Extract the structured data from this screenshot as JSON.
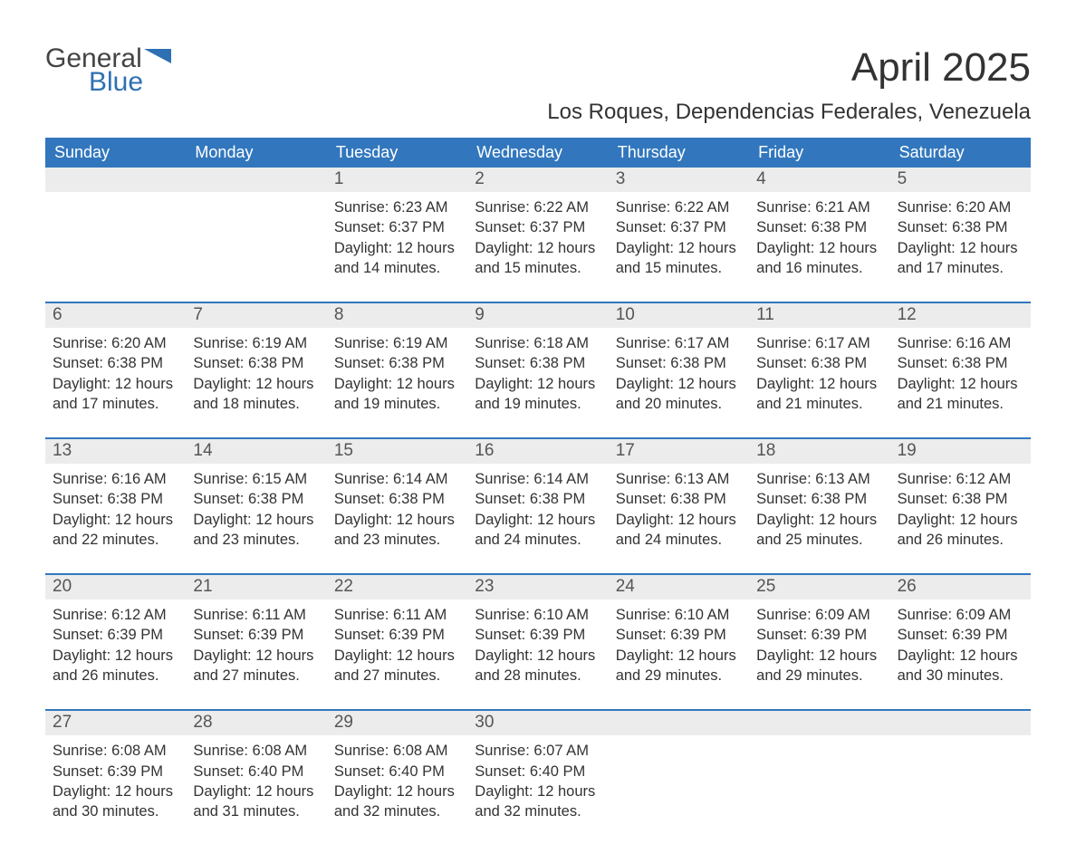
{
  "logo": {
    "general": "General",
    "blue": "Blue",
    "flag_color": "#2f6fb3"
  },
  "title": "April 2025",
  "location": "Los Roques, Dependencias Federales, Venezuela",
  "header_bg": "#3277bd",
  "daynum_bg": "#ececec",
  "rule_color": "#3277bd",
  "text_color": "#333333",
  "dow": [
    "Sunday",
    "Monday",
    "Tuesday",
    "Wednesday",
    "Thursday",
    "Friday",
    "Saturday"
  ],
  "weeks": [
    [
      null,
      null,
      {
        "n": "1",
        "sr": "Sunrise: 6:23 AM",
        "ss": "Sunset: 6:37 PM",
        "d1": "Daylight: 12 hours",
        "d2": "and 14 minutes."
      },
      {
        "n": "2",
        "sr": "Sunrise: 6:22 AM",
        "ss": "Sunset: 6:37 PM",
        "d1": "Daylight: 12 hours",
        "d2": "and 15 minutes."
      },
      {
        "n": "3",
        "sr": "Sunrise: 6:22 AM",
        "ss": "Sunset: 6:37 PM",
        "d1": "Daylight: 12 hours",
        "d2": "and 15 minutes."
      },
      {
        "n": "4",
        "sr": "Sunrise: 6:21 AM",
        "ss": "Sunset: 6:38 PM",
        "d1": "Daylight: 12 hours",
        "d2": "and 16 minutes."
      },
      {
        "n": "5",
        "sr": "Sunrise: 6:20 AM",
        "ss": "Sunset: 6:38 PM",
        "d1": "Daylight: 12 hours",
        "d2": "and 17 minutes."
      }
    ],
    [
      {
        "n": "6",
        "sr": "Sunrise: 6:20 AM",
        "ss": "Sunset: 6:38 PM",
        "d1": "Daylight: 12 hours",
        "d2": "and 17 minutes."
      },
      {
        "n": "7",
        "sr": "Sunrise: 6:19 AM",
        "ss": "Sunset: 6:38 PM",
        "d1": "Daylight: 12 hours",
        "d2": "and 18 minutes."
      },
      {
        "n": "8",
        "sr": "Sunrise: 6:19 AM",
        "ss": "Sunset: 6:38 PM",
        "d1": "Daylight: 12 hours",
        "d2": "and 19 minutes."
      },
      {
        "n": "9",
        "sr": "Sunrise: 6:18 AM",
        "ss": "Sunset: 6:38 PM",
        "d1": "Daylight: 12 hours",
        "d2": "and 19 minutes."
      },
      {
        "n": "10",
        "sr": "Sunrise: 6:17 AM",
        "ss": "Sunset: 6:38 PM",
        "d1": "Daylight: 12 hours",
        "d2": "and 20 minutes."
      },
      {
        "n": "11",
        "sr": "Sunrise: 6:17 AM",
        "ss": "Sunset: 6:38 PM",
        "d1": "Daylight: 12 hours",
        "d2": "and 21 minutes."
      },
      {
        "n": "12",
        "sr": "Sunrise: 6:16 AM",
        "ss": "Sunset: 6:38 PM",
        "d1": "Daylight: 12 hours",
        "d2": "and 21 minutes."
      }
    ],
    [
      {
        "n": "13",
        "sr": "Sunrise: 6:16 AM",
        "ss": "Sunset: 6:38 PM",
        "d1": "Daylight: 12 hours",
        "d2": "and 22 minutes."
      },
      {
        "n": "14",
        "sr": "Sunrise: 6:15 AM",
        "ss": "Sunset: 6:38 PM",
        "d1": "Daylight: 12 hours",
        "d2": "and 23 minutes."
      },
      {
        "n": "15",
        "sr": "Sunrise: 6:14 AM",
        "ss": "Sunset: 6:38 PM",
        "d1": "Daylight: 12 hours",
        "d2": "and 23 minutes."
      },
      {
        "n": "16",
        "sr": "Sunrise: 6:14 AM",
        "ss": "Sunset: 6:38 PM",
        "d1": "Daylight: 12 hours",
        "d2": "and 24 minutes."
      },
      {
        "n": "17",
        "sr": "Sunrise: 6:13 AM",
        "ss": "Sunset: 6:38 PM",
        "d1": "Daylight: 12 hours",
        "d2": "and 24 minutes."
      },
      {
        "n": "18",
        "sr": "Sunrise: 6:13 AM",
        "ss": "Sunset: 6:38 PM",
        "d1": "Daylight: 12 hours",
        "d2": "and 25 minutes."
      },
      {
        "n": "19",
        "sr": "Sunrise: 6:12 AM",
        "ss": "Sunset: 6:38 PM",
        "d1": "Daylight: 12 hours",
        "d2": "and 26 minutes."
      }
    ],
    [
      {
        "n": "20",
        "sr": "Sunrise: 6:12 AM",
        "ss": "Sunset: 6:39 PM",
        "d1": "Daylight: 12 hours",
        "d2": "and 26 minutes."
      },
      {
        "n": "21",
        "sr": "Sunrise: 6:11 AM",
        "ss": "Sunset: 6:39 PM",
        "d1": "Daylight: 12 hours",
        "d2": "and 27 minutes."
      },
      {
        "n": "22",
        "sr": "Sunrise: 6:11 AM",
        "ss": "Sunset: 6:39 PM",
        "d1": "Daylight: 12 hours",
        "d2": "and 27 minutes."
      },
      {
        "n": "23",
        "sr": "Sunrise: 6:10 AM",
        "ss": "Sunset: 6:39 PM",
        "d1": "Daylight: 12 hours",
        "d2": "and 28 minutes."
      },
      {
        "n": "24",
        "sr": "Sunrise: 6:10 AM",
        "ss": "Sunset: 6:39 PM",
        "d1": "Daylight: 12 hours",
        "d2": "and 29 minutes."
      },
      {
        "n": "25",
        "sr": "Sunrise: 6:09 AM",
        "ss": "Sunset: 6:39 PM",
        "d1": "Daylight: 12 hours",
        "d2": "and 29 minutes."
      },
      {
        "n": "26",
        "sr": "Sunrise: 6:09 AM",
        "ss": "Sunset: 6:39 PM",
        "d1": "Daylight: 12 hours",
        "d2": "and 30 minutes."
      }
    ],
    [
      {
        "n": "27",
        "sr": "Sunrise: 6:08 AM",
        "ss": "Sunset: 6:39 PM",
        "d1": "Daylight: 12 hours",
        "d2": "and 30 minutes."
      },
      {
        "n": "28",
        "sr": "Sunrise: 6:08 AM",
        "ss": "Sunset: 6:40 PM",
        "d1": "Daylight: 12 hours",
        "d2": "and 31 minutes."
      },
      {
        "n": "29",
        "sr": "Sunrise: 6:08 AM",
        "ss": "Sunset: 6:40 PM",
        "d1": "Daylight: 12 hours",
        "d2": "and 32 minutes."
      },
      {
        "n": "30",
        "sr": "Sunrise: 6:07 AM",
        "ss": "Sunset: 6:40 PM",
        "d1": "Daylight: 12 hours",
        "d2": "and 32 minutes."
      },
      null,
      null,
      null
    ]
  ]
}
